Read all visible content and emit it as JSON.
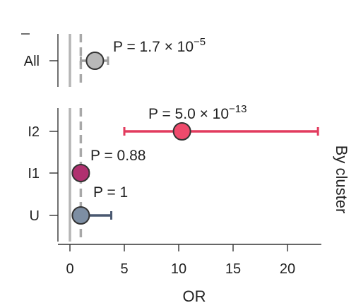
{
  "chart_data": {
    "type": "forest",
    "xlabel": "OR",
    "xlim": [
      -1,
      23.5
    ],
    "xticks": [
      0,
      5,
      10,
      15,
      20
    ],
    "reference_lines": [
      {
        "x": 0,
        "style": "solid",
        "color": "#b5b5b5"
      },
      {
        "x": 1,
        "style": "dashed",
        "color": "#a8a8a8"
      }
    ],
    "panels": [
      {
        "side_label": "",
        "rows": [
          {
            "label": "All",
            "or": 2.3,
            "ci": [
              1.0,
              3.5
            ],
            "p_base": "1.7",
            "p_exp": "−5",
            "color": "#b8b8b8",
            "bar_color": "#a0a0a0"
          }
        ]
      },
      {
        "side_label": "By cluster",
        "rows": [
          {
            "label": "I2",
            "or": 10.3,
            "ci": [
              5.0,
              22.8
            ],
            "p_base": "5.0",
            "p_exp": "−13",
            "color": "#ef4a6c",
            "bar_color": "#e23b5e"
          },
          {
            "label": "I1",
            "or": 1.0,
            "ci": [
              0.5,
              1.7
            ],
            "p_text": "0.88",
            "color": "#b0306f",
            "bar_color": "#8e2058"
          },
          {
            "label": "U",
            "or": 1.0,
            "ci": [
              0.4,
              3.8
            ],
            "p_text": "1",
            "color": "#7d8ea3",
            "bar_color": "#4a5870"
          }
        ]
      }
    ]
  }
}
